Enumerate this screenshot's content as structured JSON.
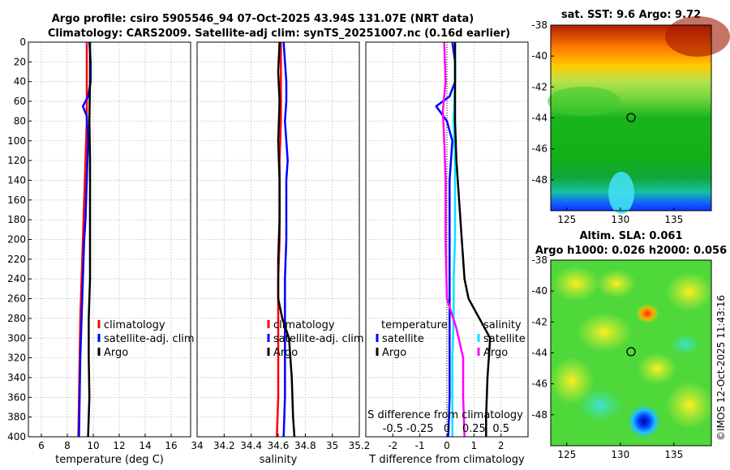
{
  "title_line1": "Argo profile: csiro 5905546_94 07-Oct-2025 43.94S 131.07E (NRT data)",
  "title_line2": "Climatology: CARS2009. Satellite-adj clim: synTS_20251007.nc (0.16d earlier)",
  "sst_map_title": "sat. SST: 9.6 Argo: 9.72",
  "sla_map_title1": "Altim. SLA: 0.061",
  "sla_map_title2": "Argo h1000: 0.026 h2000: 0.056",
  "timestamp": "©IMOS 12-Oct-2025 11:43:16",
  "colors": {
    "climatology": "#ff0000",
    "satellite": "#0000ff",
    "argo": "#000000",
    "sal_satellite": "#00e5ff",
    "sal_diff": "#ff00ff"
  },
  "chart_data": [
    {
      "type": "line",
      "id": "temperature_profile",
      "xlabel": "temperature (deg C)",
      "ylabel": "depth",
      "xlim": [
        5,
        17.5
      ],
      "ylim": [
        400,
        0
      ],
      "xticks": [
        6,
        8,
        10,
        12,
        14,
        16
      ],
      "yticks": [
        0,
        20,
        40,
        60,
        80,
        100,
        120,
        140,
        160,
        180,
        200,
        220,
        240,
        260,
        280,
        300,
        320,
        340,
        360,
        380,
        400
      ],
      "grid": true,
      "legend": [
        "climatology",
        "satellite-adj. clim",
        "Argo"
      ],
      "series": [
        {
          "name": "climatology",
          "depth": [
            0,
            40,
            80,
            120,
            160,
            200,
            240,
            280,
            320,
            360,
            400
          ],
          "values": [
            9.5,
            9.5,
            9.5,
            9.4,
            9.3,
            9.2,
            9.1,
            9.0,
            8.95,
            8.9,
            8.85
          ]
        },
        {
          "name": "satellite-adj. clim",
          "depth": [
            0,
            20,
            40,
            55,
            65,
            75,
            100,
            140,
            180,
            200,
            240,
            280,
            320,
            360,
            400
          ],
          "values": [
            9.7,
            9.8,
            9.8,
            9.6,
            9.2,
            9.5,
            9.6,
            9.5,
            9.4,
            9.3,
            9.2,
            9.1,
            9.0,
            8.95,
            8.9
          ]
        },
        {
          "name": "Argo",
          "depth": [
            0,
            40,
            80,
            120,
            160,
            200,
            240,
            260,
            280,
            320,
            360,
            400
          ],
          "values": [
            9.75,
            9.75,
            9.7,
            9.75,
            9.75,
            9.75,
            9.75,
            9.7,
            9.65,
            9.65,
            9.7,
            9.6
          ]
        }
      ]
    },
    {
      "type": "line",
      "id": "salinity_profile",
      "xlabel": "salinity",
      "xlim": [
        34,
        35.2
      ],
      "ylim": [
        400,
        0
      ],
      "xticks": [
        34,
        34.2,
        34.4,
        34.6,
        34.8,
        35,
        35.2
      ],
      "grid": true,
      "legend": [
        "climatology",
        "satellite-adj. clim",
        "Argo"
      ],
      "series": [
        {
          "name": "climatology",
          "depth": [
            0,
            40,
            80,
            120,
            160,
            200,
            240,
            280,
            320,
            360,
            400
          ],
          "values": [
            34.62,
            34.62,
            34.62,
            34.61,
            34.61,
            34.61,
            34.6,
            34.6,
            34.6,
            34.6,
            34.59
          ]
        },
        {
          "name": "satellite-adj. clim",
          "depth": [
            0,
            20,
            40,
            60,
            80,
            100,
            120,
            140,
            160,
            200,
            240,
            280,
            320,
            360,
            400
          ],
          "values": [
            34.64,
            34.65,
            34.66,
            34.66,
            34.65,
            34.66,
            34.67,
            34.66,
            34.66,
            34.66,
            34.65,
            34.65,
            34.65,
            34.65,
            34.64
          ]
        },
        {
          "name": "Argo",
          "depth": [
            0,
            30,
            60,
            100,
            140,
            180,
            220,
            260,
            280,
            300,
            340,
            380,
            400
          ],
          "values": [
            34.61,
            34.6,
            34.61,
            34.6,
            34.61,
            34.61,
            34.6,
            34.6,
            34.63,
            34.68,
            34.7,
            34.71,
            34.72
          ]
        }
      ]
    },
    {
      "type": "line",
      "id": "difference_profile",
      "xlabel": "T difference from climatology",
      "top_label": "S difference from climatology",
      "xlim": [
        -3,
        3
      ],
      "ylim": [
        400,
        0
      ],
      "xticks": [
        -2,
        -1,
        0,
        1,
        2
      ],
      "top_ticks": [
        "-0.5",
        "-0.25",
        "0",
        "0.25",
        "0.5"
      ],
      "grid": true,
      "legend_left_title": "temperature",
      "legend_right_title": "salinity",
      "legend_left": [
        "satellite",
        "Argo"
      ],
      "legend_right": [
        "satellite",
        "salinity diff Argo"
      ],
      "legend_right_labels": [
        "satellite",
        "Argo"
      ],
      "series": [
        {
          "name": "T satellite",
          "depth": [
            0,
            20,
            40,
            55,
            65,
            80,
            100,
            140,
            200,
            260,
            300,
            360,
            400
          ],
          "values": [
            0.2,
            0.3,
            0.3,
            0.1,
            -0.4,
            0.0,
            0.2,
            0.1,
            0.1,
            0.1,
            0.1,
            0.1,
            0.05
          ]
        },
        {
          "name": "S satellite",
          "depth": [
            0,
            40,
            80,
            120,
            160,
            200,
            240,
            280,
            320,
            360,
            400
          ],
          "values": [
            0.3,
            0.3,
            0.25,
            0.3,
            0.3,
            0.3,
            0.25,
            0.25,
            0.2,
            0.2,
            0.2
          ]
        },
        {
          "name": "S Argo",
          "depth": [
            0,
            40,
            70,
            100,
            140,
            200,
            260,
            290,
            320,
            360,
            400
          ],
          "values": [
            -0.1,
            -0.05,
            -0.15,
            -0.1,
            -0.05,
            -0.05,
            0.0,
            0.35,
            0.6,
            0.6,
            0.65
          ]
        },
        {
          "name": "T Argo",
          "depth": [
            0,
            40,
            80,
            120,
            160,
            200,
            240,
            260,
            280,
            300,
            340,
            380,
            400
          ],
          "values": [
            0.3,
            0.3,
            0.3,
            0.35,
            0.45,
            0.55,
            0.65,
            0.8,
            1.2,
            1.6,
            1.5,
            1.45,
            1.45
          ]
        }
      ]
    },
    {
      "type": "heatmap",
      "id": "sst_map",
      "xlim": [
        123.5,
        138.5
      ],
      "ylim": [
        -50,
        -38
      ],
      "xticks": [
        125,
        130,
        135
      ],
      "yticks": [
        -38,
        -40,
        -42,
        -44,
        -46,
        -48
      ],
      "marker": {
        "lon": 131.07,
        "lat": -43.94
      }
    },
    {
      "type": "heatmap",
      "id": "sla_map",
      "xlim": [
        123.5,
        138.5
      ],
      "ylim": [
        -50,
        -38
      ],
      "xticks": [
        125,
        130,
        135
      ],
      "yticks": [
        -38,
        -40,
        -42,
        -44,
        -46,
        -48
      ],
      "marker": {
        "lon": 131.07,
        "lat": -43.94
      }
    }
  ]
}
